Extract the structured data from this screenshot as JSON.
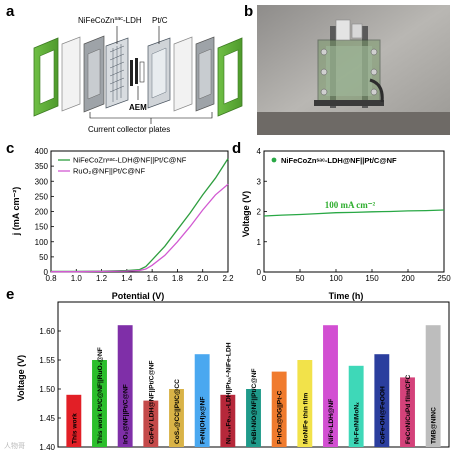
{
  "panels": {
    "a": {
      "letter": "a",
      "labels": {
        "catalyst_left": "NiFeCoZn",
        "catalyst_left_sup": "sac",
        "catalyst_left_suffix": "-LDH",
        "catalyst_right": "Pt/C",
        "membrane": "AEM",
        "collector": "Current collector plates"
      }
    },
    "b": {
      "letter": "b"
    },
    "c": {
      "letter": "c"
    },
    "d": {
      "letter": "d"
    },
    "e": {
      "letter": "e"
    }
  },
  "colors": {
    "green_curve": "#2e9e3f",
    "magenta_curve": "#d25ad2",
    "stability_green": "#29a845",
    "annotation_green": "#2fae2f"
  },
  "watermark": "人物哥",
  "chart_data": [
    {
      "panel": "c",
      "type": "line",
      "xlabel": "Potential (V)",
      "ylabel": "j (mA cm⁻²)",
      "xlim": [
        0.8,
        2.2
      ],
      "ylim": [
        0,
        400
      ],
      "xticks": [
        "0.8",
        "1.0",
        "1.2",
        "1.4",
        "1.6",
        "1.8",
        "2.0",
        "2.2"
      ],
      "yticks": [
        "0",
        "50",
        "100",
        "150",
        "200",
        "250",
        "300",
        "350",
        "400"
      ],
      "legend_position": "top-left",
      "series": [
        {
          "name": "NiFeCoZnˢᵃᶜ-LDH@NF||Pt/C@NF",
          "color": "#2e9e3f",
          "x": [
            0.8,
            1.0,
            1.2,
            1.4,
            1.5,
            1.55,
            1.6,
            1.7,
            1.8,
            1.9,
            2.0,
            2.1,
            2.2
          ],
          "y": [
            2,
            2,
            3,
            5,
            8,
            18,
            40,
            85,
            140,
            195,
            255,
            310,
            375
          ]
        },
        {
          "name": "RuO₂@NF||Pt/C@NF",
          "color": "#d25ad2",
          "x": [
            0.8,
            1.0,
            1.2,
            1.4,
            1.5,
            1.55,
            1.6,
            1.7,
            1.8,
            1.9,
            2.0,
            2.1,
            2.2
          ],
          "y": [
            1,
            1,
            2,
            3,
            5,
            10,
            22,
            55,
            100,
            150,
            205,
            255,
            290
          ]
        }
      ]
    },
    {
      "panel": "d",
      "type": "line",
      "xlabel": "Time (h)",
      "ylabel": "Voltage (V)",
      "xlim": [
        0,
        250
      ],
      "ylim": [
        0,
        4
      ],
      "xticks": [
        "0",
        "50",
        "100",
        "150",
        "200",
        "250"
      ],
      "yticks": [
        "0",
        "1",
        "2",
        "3",
        "4"
      ],
      "legend_position": "top-left",
      "annotation": "100 mA cm⁻²",
      "series": [
        {
          "name": "NiFeCoZnˢᵃᶜ-LDH@NF||Pt/C@NF",
          "color": "#29a845",
          "x": [
            0,
            25,
            50,
            75,
            100,
            125,
            150,
            175,
            200,
            225,
            250
          ],
          "y": [
            1.85,
            1.88,
            1.9,
            1.93,
            1.96,
            1.97,
            1.99,
            2.0,
            2.02,
            2.03,
            2.05
          ]
        }
      ]
    },
    {
      "panel": "e",
      "type": "bar",
      "ylabel": "Voltage (V)",
      "ylim": [
        1.4,
        1.65
      ],
      "yticks": [
        "1.40",
        "1.45",
        "1.50",
        "1.55",
        "1.60"
      ],
      "categories": [
        "This work",
        "This work Pt/C@NF||RuO₂@NF",
        "IrO₂@NF||Pt/C@NF",
        "CoFeV LDH@NF||Pt/C@NF",
        "CoS₂@CC||Pt/C@CC",
        "FeNi(OH)x@NF",
        "Ni₀.₈₅Fe₀.₁₅-LDH||Ptₛₐᶜ-NiFe-LDH",
        "FeBi-NiO@NF||Pt/C@NF",
        "P-IrOx@DG||Pt-C",
        "MoNiFe thin film",
        "NiFe-LDH@NF",
        "Ni-Fe/NiMoNₓ",
        "CoFe-OH@FeOOH",
        "FeCoNiCuPd film/CFC",
        "TMB@NINC"
      ],
      "values": [
        1.49,
        1.55,
        1.61,
        1.48,
        1.5,
        1.56,
        1.49,
        1.5,
        1.53,
        1.55,
        1.61,
        1.54,
        1.56,
        1.52,
        1.61
      ],
      "colors": [
        "#e21f26",
        "#2bbf2b",
        "#7f2fa8",
        "#c44a4a",
        "#d9b347",
        "#4aa8f0",
        "#b6283a",
        "#1f9a8a",
        "#f07b2e",
        "#f2e24a",
        "#d24fd2",
        "#3ed8b8",
        "#2b3e9e",
        "#d4427a",
        "#bdbdbd"
      ]
    }
  ]
}
